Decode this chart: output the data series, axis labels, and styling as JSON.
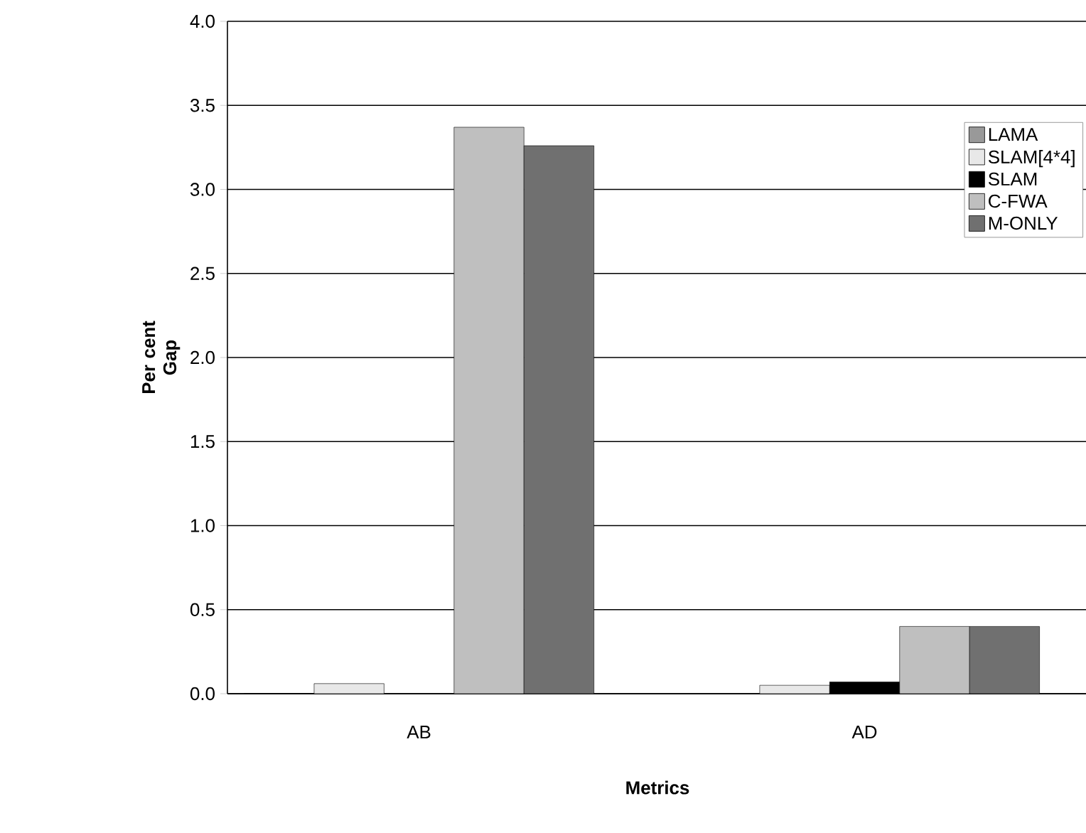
{
  "chart_data": {
    "type": "bar",
    "xlabel": "Metrics",
    "ylabel": "Per cent Gap",
    "categories": [
      "AB",
      "AD"
    ],
    "series": [
      {
        "name": "LAMA",
        "color": "#999999",
        "values": [
          0,
          0
        ]
      },
      {
        "name": "SLAM[4*4]",
        "color": "#e8e8e8",
        "values": [
          0.06,
          0.05
        ]
      },
      {
        "name": "SLAM",
        "color": "#000000",
        "values": [
          0,
          0.07
        ]
      },
      {
        "name": "C-FWA",
        "color": "#bfbfbf",
        "values": [
          3.37,
          0.4
        ]
      },
      {
        "name": "M-ONLY",
        "color": "#707070",
        "values": [
          3.26,
          0.4
        ]
      }
    ],
    "ylim": [
      0,
      4
    ],
    "yticks": [
      {
        "value": 0,
        "label": "0.0"
      },
      {
        "value": 0.5,
        "label": "0.5"
      },
      {
        "value": 1,
        "label": "1.0"
      },
      {
        "value": 1.5,
        "label": "1.5"
      },
      {
        "value": 2,
        "label": "2.0"
      },
      {
        "value": 2.5,
        "label": "2.5"
      },
      {
        "value": 3,
        "label": "3.0"
      },
      {
        "value": 3.5,
        "label": "3.5"
      },
      {
        "value": 4,
        "label": "4.0"
      }
    ],
    "grid": "y",
    "legend": "top right"
  }
}
